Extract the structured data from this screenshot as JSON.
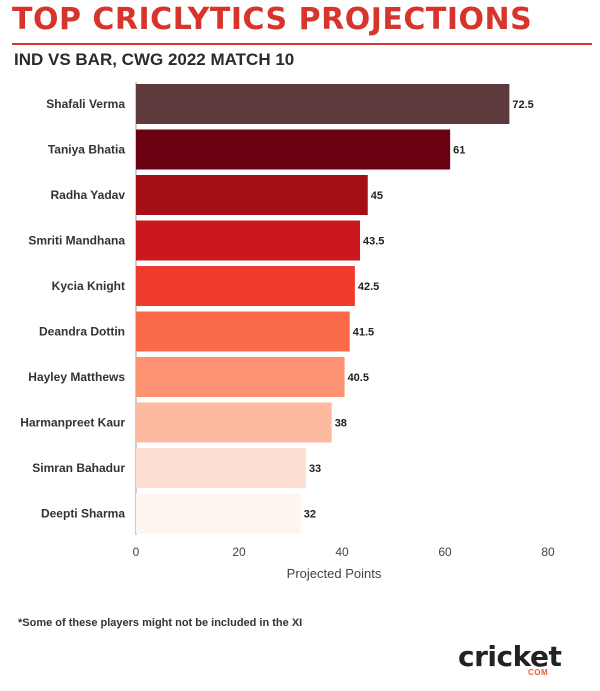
{
  "header": {
    "title": "TOP CRICLYTICS PROJECTIONS",
    "subtitle": "IND VS BAR, CWG 2022 MATCH 10"
  },
  "chart_data": {
    "type": "bar",
    "orientation": "horizontal",
    "categories": [
      "Shafali Verma",
      "Taniya Bhatia",
      "Radha Yadav",
      "Smriti Mandhana",
      "Kycia Knight",
      "Deandra Dottin",
      "Hayley Matthews",
      "Harmanpreet Kaur",
      "Simran Bahadur",
      "Deepti Sharma"
    ],
    "values": [
      72.5,
      61,
      45,
      43.5,
      42.5,
      41.5,
      40.5,
      38,
      33,
      32
    ],
    "value_labels": [
      "72.5",
      "61",
      "45",
      "43.5",
      "42.5",
      "41.5",
      "40.5",
      "38",
      "33",
      "32"
    ],
    "colors": [
      "#5e3a3d",
      "#6b0012",
      "#a50f15",
      "#cb181d",
      "#ef3b2c",
      "#fb6a4a",
      "#fc9272",
      "#fcbba1",
      "#fee0d2",
      "#fff5f0"
    ],
    "xlabel": "Projected Points",
    "ylabel": "",
    "xlim": [
      0,
      80
    ],
    "xticks": [
      "0",
      "20",
      "40",
      "60",
      "80"
    ],
    "grid": false
  },
  "footnote": "*Some of these players might not be included in the XI",
  "logo": {
    "word": "cricket",
    "sub": "COM",
    "brand_color": "#e8612c"
  }
}
